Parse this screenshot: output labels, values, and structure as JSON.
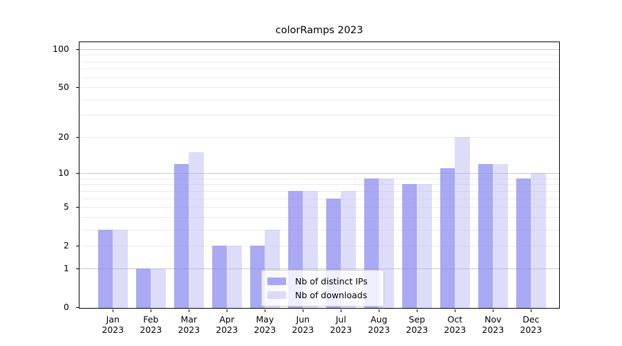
{
  "chart_data": {
    "type": "bar",
    "title": "colorRamps 2023",
    "categories": [
      "Jan",
      "Feb",
      "Mar",
      "Apr",
      "May",
      "Jun",
      "Jul",
      "Aug",
      "Sep",
      "Oct",
      "Nov",
      "Dec"
    ],
    "year_label": "2023",
    "series": [
      {
        "name": "Nb of distinct IPs",
        "color": "#8484ef",
        "alpha": 0.7,
        "effective_color": "#a9a9f4",
        "values": [
          3,
          1,
          12,
          2,
          2,
          7,
          6,
          9,
          8,
          11,
          12,
          9
        ]
      },
      {
        "name": "Nb of downloads",
        "color": "#b4b4f2",
        "alpha": 0.45,
        "effective_color": "#dddef9",
        "values": [
          3,
          1,
          15,
          2,
          3,
          7,
          7,
          9,
          8,
          20,
          12,
          10
        ]
      }
    ],
    "yscale": "log1p",
    "ylim": [
      0,
      113
    ],
    "yticks": [
      0,
      1,
      2,
      5,
      10,
      20,
      50,
      100
    ],
    "ytick_labels": [
      "0",
      "1",
      "2",
      "5",
      "10",
      "20",
      "50",
      "100"
    ],
    "minor_gridlines": [
      2,
      3,
      4,
      5,
      6,
      7,
      8,
      9,
      20,
      30,
      40,
      50,
      60,
      70,
      80,
      90
    ],
    "major_gridlines": [
      1,
      10,
      100
    ],
    "grid": true,
    "legend_position": "lower center",
    "xlabel": "",
    "ylabel": ""
  },
  "colors": {
    "background": "#ffffff",
    "spine": "#000000",
    "minor_grid": "#ebebeb",
    "major_grid": "#c9c9c9",
    "text": "#000000",
    "legend_border": "#cccccc"
  }
}
